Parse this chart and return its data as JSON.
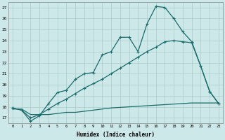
{
  "xlabel": "Humidex (Indice chaleur)",
  "background_color": "#cde8e8",
  "grid_color": "#aacaca",
  "line_color": "#1a6b6b",
  "xlim": [
    -0.5,
    23.5
  ],
  "ylim": [
    16.5,
    27.5
  ],
  "xticks": [
    0,
    1,
    2,
    3,
    4,
    5,
    6,
    7,
    8,
    9,
    10,
    11,
    12,
    13,
    14,
    15,
    16,
    17,
    18,
    19,
    20,
    21,
    22,
    23
  ],
  "yticks": [
    17,
    18,
    19,
    20,
    21,
    22,
    23,
    24,
    25,
    26,
    27
  ],
  "line1_x": [
    0,
    1,
    2,
    3,
    4,
    5,
    6,
    7,
    8,
    9,
    10,
    11,
    12,
    13,
    14,
    15,
    16,
    17,
    18,
    19,
    20,
    21,
    22,
    23
  ],
  "line1_y": [
    17.9,
    17.7,
    16.7,
    17.2,
    18.3,
    19.3,
    19.5,
    20.5,
    21.0,
    21.1,
    22.7,
    23.0,
    24.3,
    24.3,
    23.0,
    25.5,
    27.1,
    27.0,
    26.0,
    24.8,
    23.9,
    21.7,
    19.4,
    18.3
  ],
  "line2_x": [
    0,
    1,
    2,
    3,
    4,
    5,
    6,
    7,
    8,
    9,
    10,
    11,
    12,
    13,
    14,
    15,
    16,
    17,
    18,
    19,
    20,
    21,
    22,
    23
  ],
  "line2_y": [
    17.9,
    17.7,
    17.0,
    17.3,
    17.8,
    18.3,
    18.7,
    19.2,
    19.7,
    20.1,
    20.5,
    21.0,
    21.5,
    22.0,
    22.5,
    23.0,
    23.4,
    23.9,
    24.0,
    23.9,
    23.8,
    21.7,
    19.4,
    18.3
  ],
  "line3_x": [
    0,
    1,
    2,
    3,
    4,
    5,
    6,
    7,
    8,
    9,
    10,
    11,
    12,
    13,
    14,
    15,
    16,
    17,
    18,
    19,
    20,
    21,
    22,
    23
  ],
  "line3_y": [
    17.8,
    17.8,
    17.3,
    17.3,
    17.3,
    17.4,
    17.5,
    17.5,
    17.6,
    17.7,
    17.8,
    17.9,
    17.95,
    18.0,
    18.05,
    18.1,
    18.15,
    18.2,
    18.25,
    18.3,
    18.35,
    18.35,
    18.35,
    18.35
  ]
}
